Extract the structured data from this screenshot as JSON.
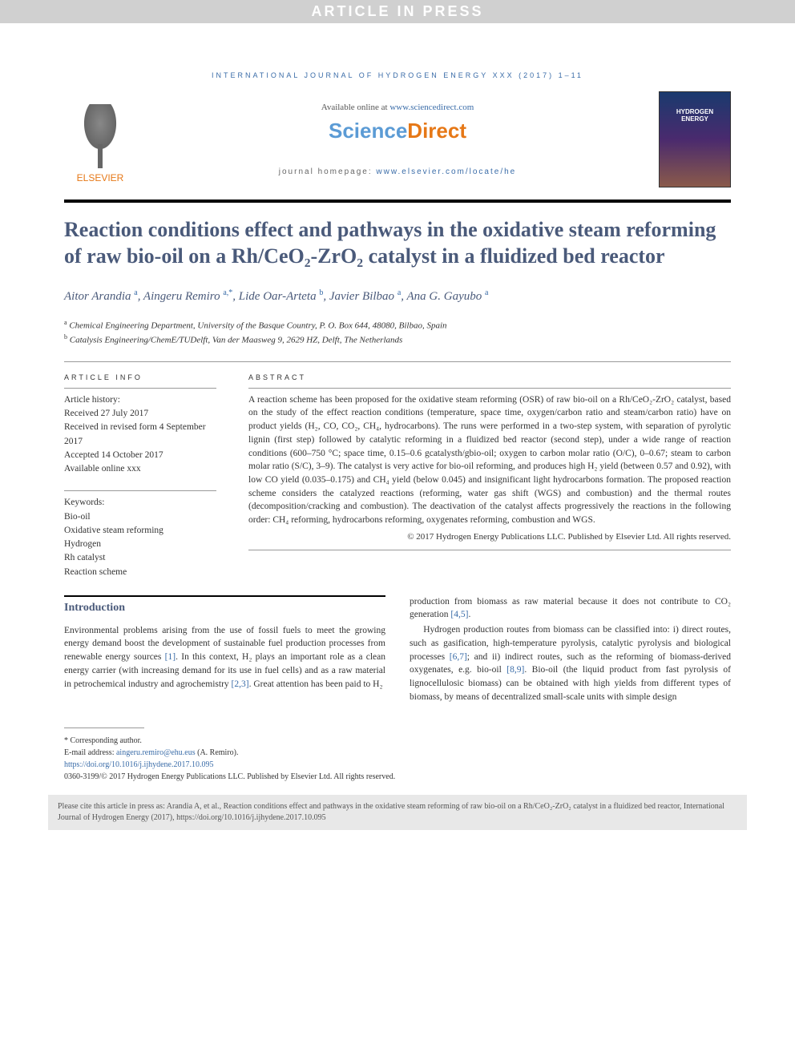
{
  "banner": "ARTICLE IN PRESS",
  "journal_header": "INTERNATIONAL JOURNAL OF HYDROGEN ENERGY XXX (2017) 1–11",
  "header": {
    "available": "Available online at ",
    "sd_url": "www.sciencedirect.com",
    "sd_science": "Science",
    "sd_direct": "Direct",
    "homepage_label": "journal homepage: ",
    "homepage_url": "www.elsevier.com/locate/he",
    "elsevier": "ELSEVIER"
  },
  "title": "Reaction conditions effect and pathways in the oxidative steam reforming of raw bio-oil on a Rh/CeO₂-ZrO₂ catalyst in a fluidized bed reactor",
  "authors_html": "Aitor Arandia <span class='sup'>a</span>, Aingeru Remiro <span class='sup'>a,*</span>, Lide Oar-Arteta <span class='sup'>b</span>, Javier Bilbao <span class='sup'>a</span>, Ana G. Gayubo <span class='sup'>a</span>",
  "affiliations": {
    "a": "Chemical Engineering Department, University of the Basque Country, P. O. Box 644, 48080, Bilbao, Spain",
    "b": "Catalysis Engineering/ChemE/TUDelft, Van der Maasweg 9, 2629 HZ, Delft, The Netherlands"
  },
  "article_info": {
    "label": "ARTICLE INFO",
    "history_label": "Article history:",
    "received": "Received 27 July 2017",
    "revised": "Received in revised form 4 September 2017",
    "accepted": "Accepted 14 October 2017",
    "online": "Available online xxx",
    "keywords_label": "Keywords:",
    "keywords": [
      "Bio-oil",
      "Oxidative steam reforming",
      "Hydrogen",
      "Rh catalyst",
      "Reaction scheme"
    ]
  },
  "abstract": {
    "label": "ABSTRACT",
    "text": "A reaction scheme has been proposed for the oxidative steam reforming (OSR) of raw bio-oil on a Rh/CeO₂-ZrO₂ catalyst, based on the study of the effect reaction conditions (temperature, space time, oxygen/carbon ratio and steam/carbon ratio) have on product yields (H₂, CO, CO₂, CH₄, hydrocarbons). The runs were performed in a two-step system, with separation of pyrolytic lignin (first step) followed by catalytic reforming in a fluidized bed reactor (second step), under a wide range of reaction conditions (600–750 °C; space time, 0.15–0.6 gcatalysth/gbio-oil; oxygen to carbon molar ratio (O/C), 0–0.67; steam to carbon molar ratio (S/C), 3–9). The catalyst is very active for bio-oil reforming, and produces high H₂ yield (between 0.57 and 0.92), with low CO yield (0.035–0.175) and CH₄ yield (below 0.045) and insignificant light hydrocarbons formation. The proposed reaction scheme considers the catalyzed reactions (reforming, water gas shift (WGS) and combustion) and the thermal routes (decomposition/cracking and combustion). The deactivation of the catalyst affects progressively the reactions in the following order: CH₄ reforming, hydrocarbons reforming, oxygenates reforming, combustion and WGS.",
    "copyright": "© 2017 Hydrogen Energy Publications LLC. Published by Elsevier Ltd. All rights reserved."
  },
  "intro": {
    "heading": "Introduction",
    "col1": "Environmental problems arising from the use of fossil fuels to meet the growing energy demand boost the development of sustainable fuel production processes from renewable energy sources [1]. In this context, H₂ plays an important role as a clean energy carrier (with increasing demand for its use in fuel cells) and as a raw material in petrochemical industry and agrochemistry [2,3]. Great attention has been paid to H₂",
    "col2": "production from biomass as raw material because it does not contribute to CO₂ generation [4,5].",
    "col2b": "Hydrogen production routes from biomass can be classified into: i) direct routes, such as gasification, high-temperature pyrolysis, catalytic pyrolysis and biological processes [6,7]; and ii) indirect routes, such as the reforming of biomass-derived oxygenates, e.g. bio-oil [8,9]. Bio-oil (the liquid product from fast pyrolysis of lignocellulosic biomass) can be obtained with high yields from different types of biomass, by means of decentralized small-scale units with simple design"
  },
  "footer": {
    "corresponding": "* Corresponding author.",
    "email_label": "E-mail address: ",
    "email": "aingeru.remiro@ehu.eus",
    "email_suffix": " (A. Remiro).",
    "doi": "https://doi.org/10.1016/j.ijhydene.2017.10.095",
    "issn": "0360-3199/© 2017 Hydrogen Energy Publications LLC. Published by Elsevier Ltd. All rights reserved."
  },
  "cite": "Please cite this article in press as: Arandia A, et al., Reaction conditions effect and pathways in the oxidative steam reforming of raw bio-oil on a Rh/CeO₂-ZrO₂ catalyst in a fluidized bed reactor, International Journal of Hydrogen Energy (2017), https://doi.org/10.1016/j.ijhydene.2017.10.095",
  "colors": {
    "link": "#3a6ca8",
    "heading": "#4a5a7a",
    "orange": "#e67817",
    "banner_bg": "#d0d0d0"
  }
}
